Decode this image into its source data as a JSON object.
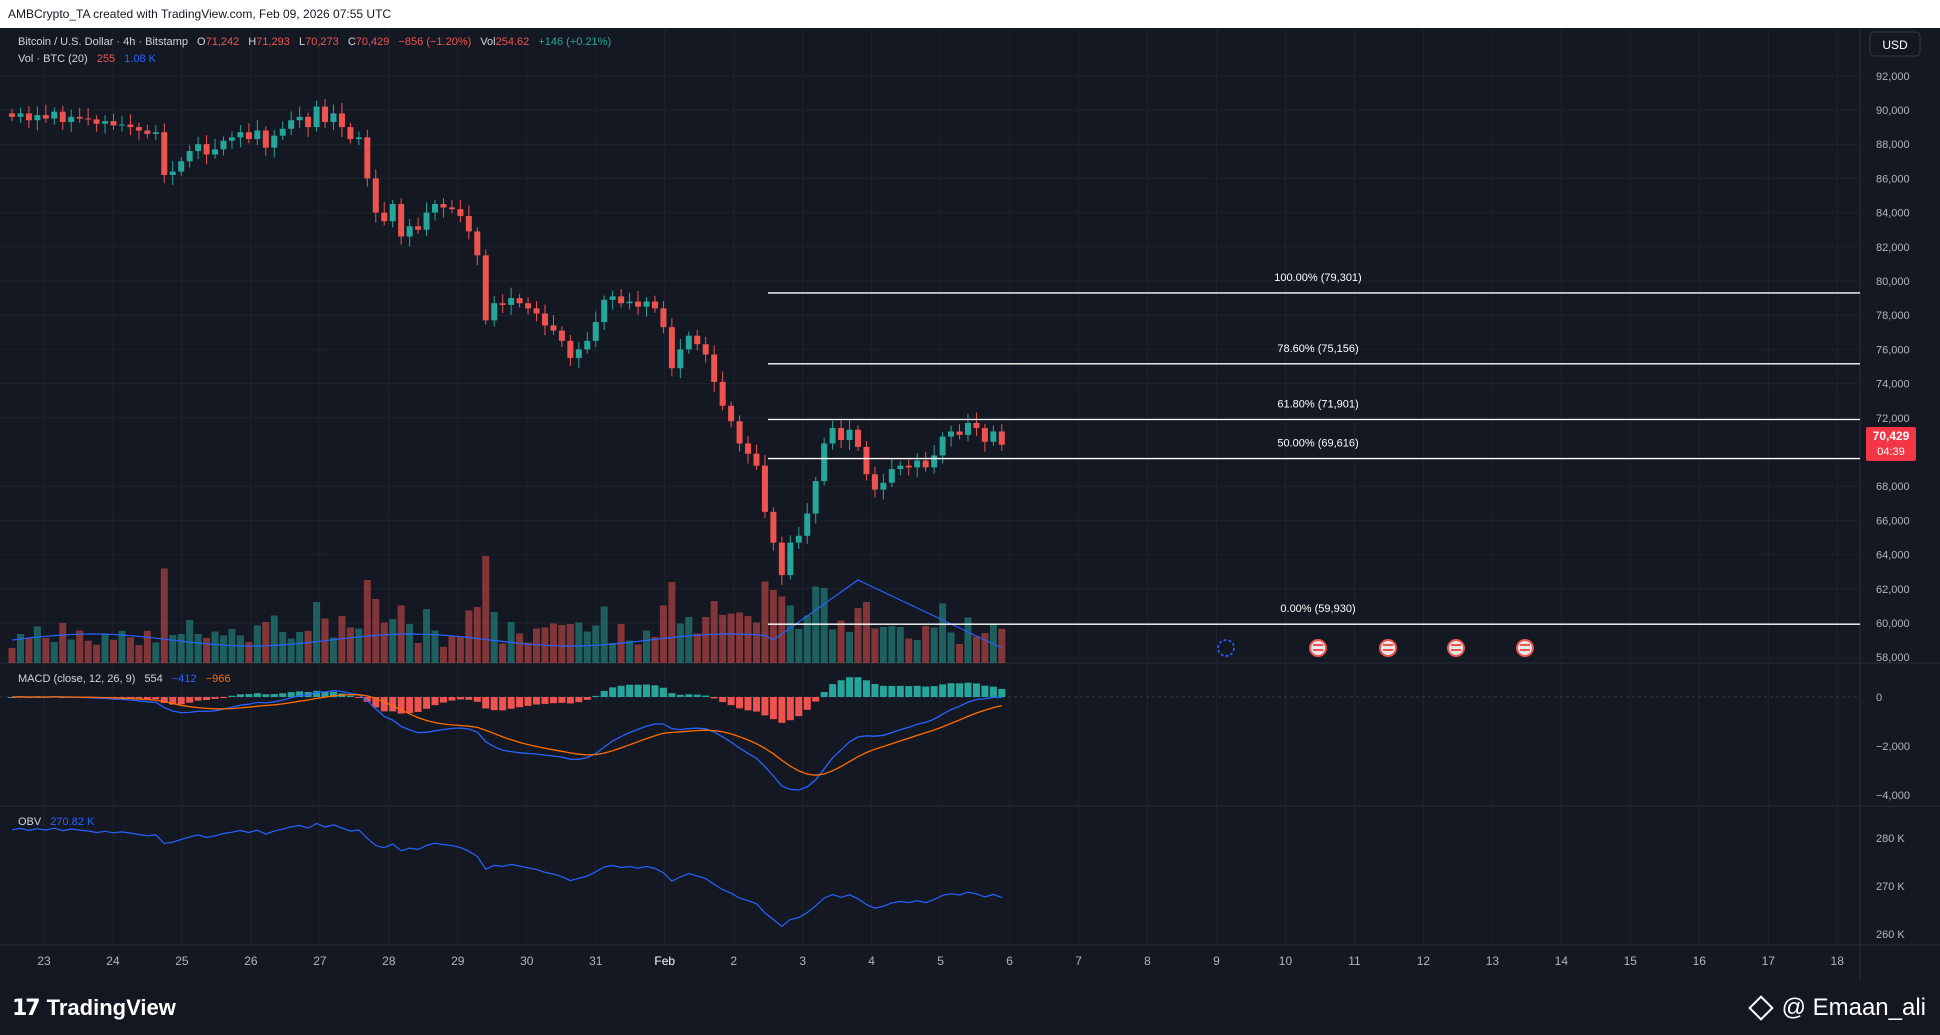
{
  "header": {
    "attribution": "AMBCrypto_TA created with TradingView.com, Feb 09, 2026 07:55 UTC"
  },
  "legend": {
    "symbol": "Bitcoin / U.S. Dollar · 4h · Bitstamp",
    "open_label": "O",
    "open": "71,242",
    "high_label": "H",
    "high": "71,293",
    "low_label": "L",
    "low": "70,273",
    "close_label": "C",
    "close": "70,429",
    "change": "−856 (−1.20%)",
    "vol_label": "Vol",
    "vol": "254.62",
    "vol_change": "+146 (+0.21%)",
    "volume_indicator": "Vol · BTC (20)",
    "volume_value": "255",
    "volume_ma": "1.08 K",
    "macd_indicator": "MACD (close, 12, 26, 9)",
    "macd_hist": "554",
    "macd_line": "−412",
    "macd_signal": "−966",
    "obv_indicator": "OBV",
    "obv_value": "270.82 K"
  },
  "price_scale": {
    "currency": "USD",
    "ticks": [
      "92,000",
      "90,000",
      "88,000",
      "86,000",
      "84,000",
      "82,000",
      "80,000",
      "78,000",
      "76,000",
      "74,000",
      "72,000",
      "68,000",
      "66,000",
      "64,000",
      "62,000",
      "60,000",
      "58,000"
    ],
    "last_price": "70,429",
    "countdown": "04:39"
  },
  "macd_scale": {
    "ticks": [
      "0",
      "−2,000",
      "−4,000"
    ]
  },
  "obv_scale": {
    "ticks": [
      "280 K",
      "270 K",
      "260 K"
    ]
  },
  "time_axis": {
    "ticks": [
      "23",
      "24",
      "25",
      "26",
      "27",
      "28",
      "29",
      "30",
      "31",
      "Feb",
      "2",
      "3",
      "4",
      "5",
      "6",
      "7",
      "8",
      "9",
      "10",
      "11",
      "12",
      "13",
      "14",
      "15",
      "16",
      "17",
      "18"
    ]
  },
  "fib_levels": [
    {
      "label": "100.00% (79,301)",
      "price": 79301
    },
    {
      "label": "78.60% (75,156)",
      "price": 75156
    },
    {
      "label": "61.80% (71,901)",
      "price": 71901
    },
    {
      "label": "50.00% (69,616)",
      "price": 69616
    },
    {
      "label": "0.00% (59,930)",
      "price": 59930
    }
  ],
  "colors": {
    "up": "#26a69a",
    "down": "#ef5350",
    "fib": "#ffffff",
    "macd": "#2962ff",
    "signal": "#ff6d00",
    "obv": "#2962ff",
    "bg": "#141823"
  },
  "footer": {
    "brand": "TradingView",
    "credit": "@ Emaan_ali"
  },
  "chart_data": {
    "type": "candlestick",
    "symbol": "BTCUSD",
    "interval": "4h",
    "ylim": [
      57000,
      93000
    ],
    "fib_retracement": {
      "high": 79301,
      "low": 59930
    },
    "closes": [
      89600,
      89800,
      89400,
      89700,
      89500,
      89900,
      89300,
      89600,
      89500,
      89450,
      89200,
      89350,
      89100,
      89150,
      89000,
      88800,
      88600,
      88700,
      86200,
      86400,
      87000,
      87600,
      88000,
      87400,
      87700,
      88200,
      88400,
      88700,
      88300,
      88800,
      87800,
      88500,
      88900,
      89400,
      89600,
      89000,
      90200,
      89300,
      89800,
      89000,
      88300,
      88400,
      86000,
      84000,
      83500,
      84500,
      82600,
      83200,
      83000,
      84000,
      84500,
      84300,
      84200,
      83800,
      82900,
      81500,
      77700,
      78700,
      78600,
      79000,
      78700,
      78400,
      78100,
      77400,
      77100,
      76500,
      75500,
      76000,
      76500,
      77600,
      78900,
      79100,
      78700,
      78800,
      78500,
      78800,
      78400,
      77300,
      74900,
      76000,
      76800,
      76300,
      75700,
      74100,
      72700,
      71800,
      70500,
      69900,
      69200,
      66500,
      64700,
      62800,
      64700,
      65100,
      66400,
      68300,
      70500,
      71400,
      70700,
      71300,
      70300,
      68700,
      67800,
      68200,
      69000,
      69200,
      69100,
      69500,
      69100,
      69800,
      70900,
      71200,
      71000,
      71700,
      71400,
      70600,
      71200,
      70429
    ],
    "fib_lines": [
      79301,
      75156,
      71901,
      69616,
      59930
    ]
  }
}
